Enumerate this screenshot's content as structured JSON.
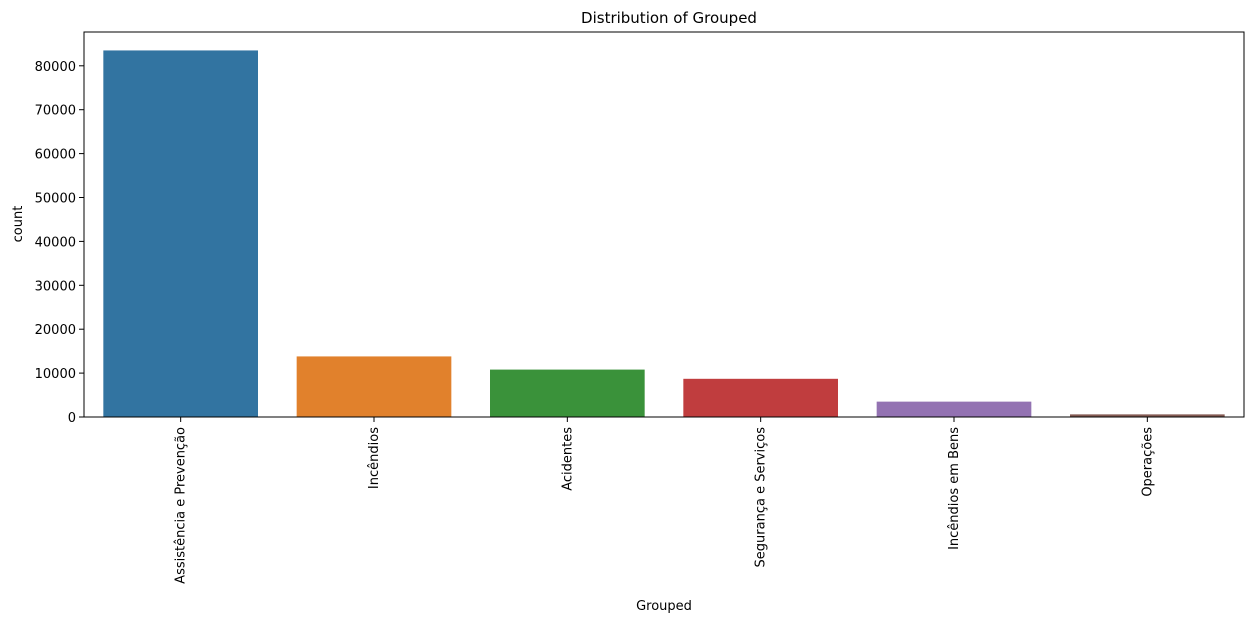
{
  "chart_data": {
    "type": "bar",
    "title": "Distribution of Grouped",
    "xlabel": "Grouped",
    "ylabel": "count",
    "categories": [
      "Assistência e Prevenção",
      "Incêndios",
      "Acidentes",
      "Segurança e Serviços",
      "Incêndios em Bens",
      "Operações"
    ],
    "values": [
      83500,
      13800,
      10800,
      8700,
      3500,
      600
    ],
    "colors": [
      "#3274a1",
      "#e1812c",
      "#3a923a",
      "#c03d3e",
      "#9372b2",
      "#845b53"
    ],
    "ylim": [
      0,
      87700
    ],
    "yticks": [
      0,
      10000,
      20000,
      30000,
      40000,
      50000,
      60000,
      70000,
      80000
    ],
    "grid": false,
    "legend": "none"
  }
}
